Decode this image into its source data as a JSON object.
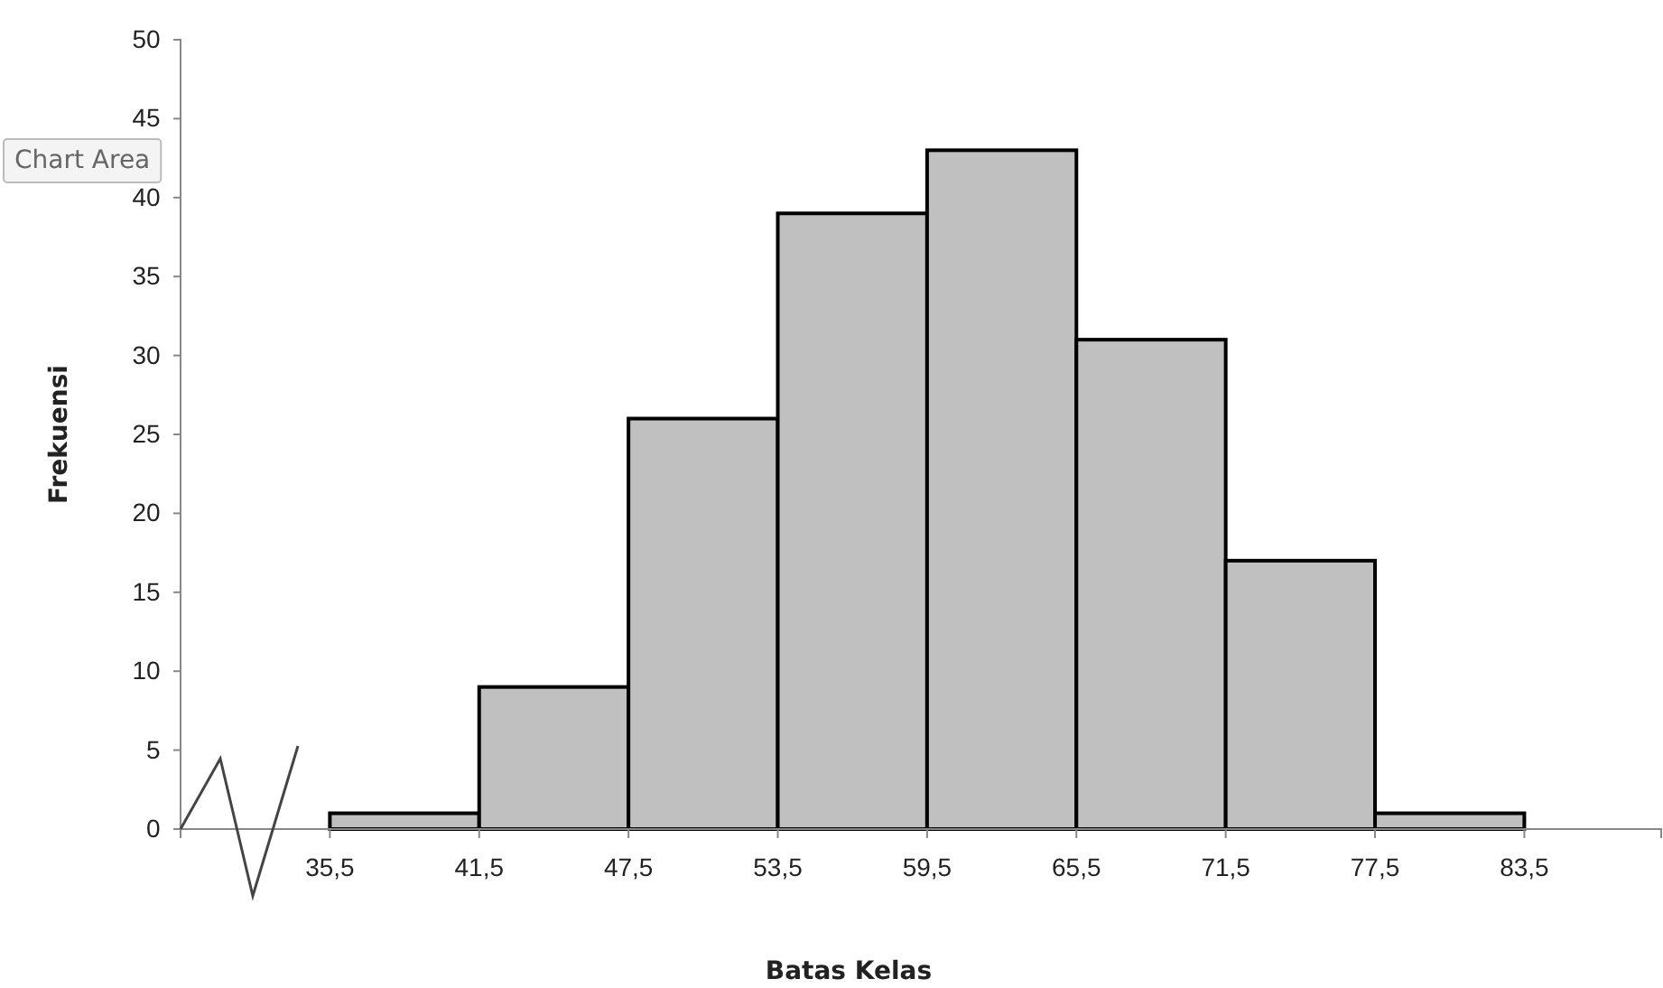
{
  "chart_data": {
    "type": "histogram",
    "xlabel": "Batas Kelas",
    "ylabel": "Frekuensi",
    "bins": [
      35.5,
      41.5,
      47.5,
      53.5,
      59.5,
      65.5,
      71.5,
      77.5,
      83.5
    ],
    "values": [
      1,
      9,
      26,
      39,
      43,
      31,
      17,
      1
    ],
    "color": "#c0c0c0",
    "xlim": [
      29.5,
      89
    ],
    "xticks": [
      {
        "value": 35.5,
        "label": "35,5"
      },
      {
        "value": 41.5,
        "label": "41,5"
      },
      {
        "value": 47.5,
        "label": "47,5"
      },
      {
        "value": 53.5,
        "label": "53,5"
      },
      {
        "value": 59.5,
        "label": "59,5"
      },
      {
        "value": 65.5,
        "label": "65,5"
      },
      {
        "value": 71.5,
        "label": "71,5"
      },
      {
        "value": 77.5,
        "label": "77,5"
      },
      {
        "value": 83.5,
        "label": "83,5"
      }
    ],
    "ylim": [
      0,
      50
    ],
    "yticks": [
      0,
      5,
      10,
      15,
      20,
      25,
      30,
      35,
      40,
      45,
      50
    ],
    "grid": false,
    "annotations": [
      "Chart Area"
    ]
  }
}
